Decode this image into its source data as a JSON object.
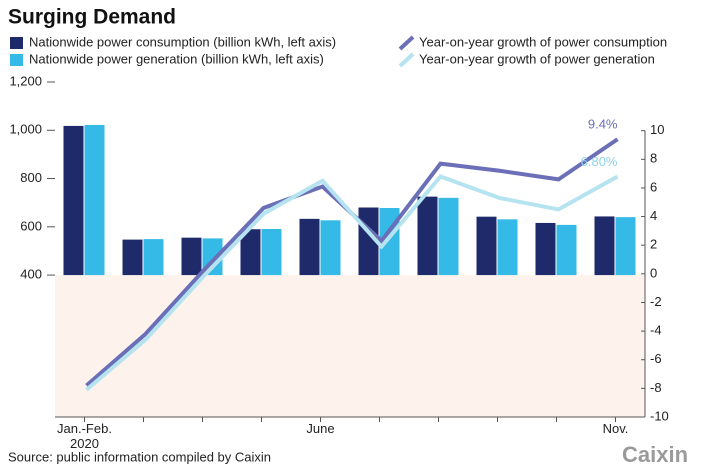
{
  "chart_data": {
    "type": "bar_line",
    "title": "Surging Demand",
    "categories": [
      "Jan.-Feb.\n2020",
      null,
      null,
      null,
      "June",
      null,
      null,
      null,
      null,
      "Nov."
    ],
    "series": [
      {
        "name": "Nationwide power consumption (billion kWh, left axis)",
        "type": "bar",
        "color": "#1f2a6b",
        "values": [
          1018,
          547,
          555,
          590,
          633,
          680,
          725,
          642,
          616,
          643
        ]
      },
      {
        "name": "Nationwide power generation (billion kWh, left axis)",
        "type": "bar",
        "color": "#35b9e6",
        "values": [
          1022,
          549,
          552,
          591,
          627,
          678,
          720,
          631,
          608,
          640
        ]
      },
      {
        "name": "Year-on-year growth of power consumption",
        "type": "line",
        "axis": "y2",
        "color": "#6a6fb8",
        "values": [
          -7.8,
          -4.2,
          0.3,
          4.6,
          6.1,
          2.3,
          7.7,
          7.2,
          6.6,
          9.4
        ],
        "value_labels": [
          null,
          null,
          null,
          null,
          null,
          null,
          null,
          null,
          null,
          "9.4%"
        ]
      },
      {
        "name": "Year-on-year growth of power generation",
        "type": "line",
        "axis": "y2",
        "color": "#b5e3f0",
        "values": [
          -8.1,
          -4.6,
          -0.1,
          4.2,
          6.5,
          1.9,
          6.8,
          5.3,
          4.5,
          6.8
        ],
        "value_labels": [
          null,
          null,
          null,
          null,
          null,
          null,
          null,
          null,
          null,
          "6.80%"
        ]
      }
    ],
    "ylim": [
      -188,
      1200
    ],
    "yticks": [
      400,
      600,
      800,
      {
        "value": 1000,
        "label": "1,000"
      },
      {
        "value": 1200,
        "label": "1,200"
      }
    ],
    "y2lim": [
      -10,
      13.4
    ],
    "y2ticks": [
      -10,
      -8,
      -6,
      -4,
      -2,
      0,
      2,
      4,
      6,
      8,
      10
    ],
    "grid": false,
    "source": "Source: public information compiled by Caixin",
    "logo": "Caixin"
  }
}
